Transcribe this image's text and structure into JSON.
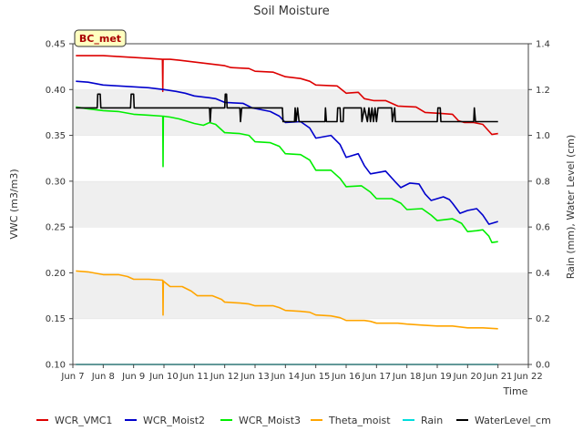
{
  "chart_data": {
    "type": "line",
    "title": "Soil Moisture",
    "badge": "BC_met",
    "xlabel": "Time",
    "ylabel_left": "VWC (m3/m3)",
    "ylabel_right": "Rain (mm), Water Level (cm)",
    "x_range": [
      7.0,
      22.0
    ],
    "ylim_left": [
      0.1,
      0.45
    ],
    "ylim_right": [
      0.0,
      1.4
    ],
    "x_ticks": [
      {
        "x": 7,
        "label": "Jun 7"
      },
      {
        "x": 8,
        "label": "Jun 8"
      },
      {
        "x": 9,
        "label": "Jun 9"
      },
      {
        "x": 10,
        "label": "Jun 10"
      },
      {
        "x": 11,
        "label": "Jun 11"
      },
      {
        "x": 12,
        "label": "Jun 12"
      },
      {
        "x": 13,
        "label": "Jun 13"
      },
      {
        "x": 14,
        "label": "Jun 14"
      },
      {
        "x": 15,
        "label": "Jun 15"
      },
      {
        "x": 16,
        "label": "Jun 16"
      },
      {
        "x": 17,
        "label": "Jun 17"
      },
      {
        "x": 18,
        "label": "Jun 18"
      },
      {
        "x": 19,
        "label": "Jun 19"
      },
      {
        "x": 20,
        "label": "Jun 20"
      },
      {
        "x": 21,
        "label": "Jun 21"
      },
      {
        "x": 22,
        "label": "Jun 22"
      }
    ],
    "y_ticks_left": [
      "0.10",
      "0.15",
      "0.20",
      "0.25",
      "0.30",
      "0.35",
      "0.40",
      "0.45"
    ],
    "y_ticks_right": [
      "0.0",
      "0.2",
      "0.4",
      "0.6",
      "0.8",
      "1.0",
      "1.2",
      "1.4"
    ],
    "grid": "horizontal bands",
    "legend_position": "bottom",
    "series": [
      {
        "name": "WCR_VMC1",
        "color": "#dd0000",
        "axis": "left",
        "points": [
          [
            7.1,
            0.437
          ],
          [
            8.0,
            0.437
          ],
          [
            8.5,
            0.436
          ],
          [
            9.0,
            0.435
          ],
          [
            9.5,
            0.434
          ],
          [
            9.95,
            0.433
          ],
          [
            9.96,
            0.398
          ],
          [
            9.97,
            0.433
          ],
          [
            10.2,
            0.433
          ],
          [
            10.5,
            0.432
          ],
          [
            11.0,
            0.43
          ],
          [
            11.5,
            0.428
          ],
          [
            12.0,
            0.426
          ],
          [
            12.2,
            0.424
          ],
          [
            12.8,
            0.423
          ],
          [
            13.0,
            0.42
          ],
          [
            13.6,
            0.419
          ],
          [
            14.0,
            0.414
          ],
          [
            14.5,
            0.412
          ],
          [
            14.8,
            0.409
          ],
          [
            15.0,
            0.405
          ],
          [
            15.7,
            0.404
          ],
          [
            16.0,
            0.396
          ],
          [
            16.4,
            0.397
          ],
          [
            16.6,
            0.39
          ],
          [
            16.9,
            0.388
          ],
          [
            17.3,
            0.388
          ],
          [
            17.7,
            0.382
          ],
          [
            18.3,
            0.381
          ],
          [
            18.6,
            0.375
          ],
          [
            19.1,
            0.374
          ],
          [
            19.5,
            0.373
          ],
          [
            19.7,
            0.366
          ],
          [
            19.9,
            0.364
          ],
          [
            20.2,
            0.364
          ],
          [
            20.5,
            0.362
          ],
          [
            20.8,
            0.351
          ],
          [
            21.0,
            0.352
          ]
        ]
      },
      {
        "name": "WCR_Moist2",
        "color": "#0000cc",
        "axis": "left",
        "points": [
          [
            7.1,
            0.409
          ],
          [
            7.5,
            0.408
          ],
          [
            8.0,
            0.405
          ],
          [
            8.5,
            0.404
          ],
          [
            9.0,
            0.403
          ],
          [
            9.5,
            0.402
          ],
          [
            10.0,
            0.4
          ],
          [
            10.4,
            0.398
          ],
          [
            10.7,
            0.396
          ],
          [
            11.0,
            0.393
          ],
          [
            11.5,
            0.391
          ],
          [
            11.7,
            0.39
          ],
          [
            12.0,
            0.386
          ],
          [
            12.6,
            0.385
          ],
          [
            12.9,
            0.38
          ],
          [
            13.2,
            0.378
          ],
          [
            13.5,
            0.376
          ],
          [
            13.8,
            0.371
          ],
          [
            14.0,
            0.364
          ],
          [
            14.5,
            0.365
          ],
          [
            14.8,
            0.358
          ],
          [
            15.0,
            0.347
          ],
          [
            15.5,
            0.35
          ],
          [
            15.8,
            0.34
          ],
          [
            16.0,
            0.326
          ],
          [
            16.4,
            0.33
          ],
          [
            16.6,
            0.317
          ],
          [
            16.8,
            0.308
          ],
          [
            17.3,
            0.311
          ],
          [
            17.6,
            0.3
          ],
          [
            17.8,
            0.293
          ],
          [
            18.1,
            0.298
          ],
          [
            18.4,
            0.297
          ],
          [
            18.6,
            0.286
          ],
          [
            18.8,
            0.279
          ],
          [
            19.2,
            0.283
          ],
          [
            19.4,
            0.28
          ],
          [
            19.5,
            0.276
          ],
          [
            19.75,
            0.265
          ],
          [
            20.0,
            0.268
          ],
          [
            20.3,
            0.27
          ],
          [
            20.5,
            0.263
          ],
          [
            20.7,
            0.253
          ],
          [
            20.9,
            0.255
          ],
          [
            21.0,
            0.256
          ]
        ]
      },
      {
        "name": "WCR_Moist3",
        "color": "#00ee00",
        "axis": "left",
        "points": [
          [
            7.1,
            0.381
          ],
          [
            7.5,
            0.379
          ],
          [
            8.0,
            0.377
          ],
          [
            8.5,
            0.376
          ],
          [
            9.0,
            0.373
          ],
          [
            9.5,
            0.372
          ],
          [
            9.96,
            0.371
          ],
          [
            9.97,
            0.316
          ],
          [
            9.98,
            0.371
          ],
          [
            10.2,
            0.37
          ],
          [
            10.5,
            0.368
          ],
          [
            11.0,
            0.363
          ],
          [
            11.3,
            0.361
          ],
          [
            11.5,
            0.364
          ],
          [
            11.7,
            0.362
          ],
          [
            12.0,
            0.353
          ],
          [
            12.5,
            0.352
          ],
          [
            12.8,
            0.35
          ],
          [
            13.0,
            0.343
          ],
          [
            13.5,
            0.342
          ],
          [
            13.8,
            0.338
          ],
          [
            14.0,
            0.33
          ],
          [
            14.5,
            0.329
          ],
          [
            14.8,
            0.323
          ],
          [
            15.0,
            0.312
          ],
          [
            15.5,
            0.312
          ],
          [
            15.8,
            0.303
          ],
          [
            16.0,
            0.294
          ],
          [
            16.5,
            0.295
          ],
          [
            16.8,
            0.288
          ],
          [
            17.0,
            0.281
          ],
          [
            17.5,
            0.281
          ],
          [
            17.8,
            0.276
          ],
          [
            18.0,
            0.269
          ],
          [
            18.5,
            0.27
          ],
          [
            18.8,
            0.263
          ],
          [
            19.0,
            0.257
          ],
          [
            19.5,
            0.259
          ],
          [
            19.8,
            0.254
          ],
          [
            20.0,
            0.245
          ],
          [
            20.3,
            0.246
          ],
          [
            20.5,
            0.247
          ],
          [
            20.7,
            0.24
          ],
          [
            20.8,
            0.233
          ],
          [
            21.0,
            0.234
          ]
        ]
      },
      {
        "name": "Theta_moist",
        "color": "#ffa500",
        "axis": "left",
        "points": [
          [
            7.1,
            0.202
          ],
          [
            7.5,
            0.201
          ],
          [
            8.0,
            0.198
          ],
          [
            8.5,
            0.198
          ],
          [
            8.8,
            0.196
          ],
          [
            9.0,
            0.193
          ],
          [
            9.5,
            0.193
          ],
          [
            9.96,
            0.192
          ],
          [
            9.97,
            0.154
          ],
          [
            9.98,
            0.191
          ],
          [
            10.2,
            0.185
          ],
          [
            10.6,
            0.185
          ],
          [
            10.9,
            0.18
          ],
          [
            11.1,
            0.175
          ],
          [
            11.6,
            0.175
          ],
          [
            11.9,
            0.171
          ],
          [
            12.0,
            0.168
          ],
          [
            12.5,
            0.167
          ],
          [
            12.8,
            0.166
          ],
          [
            13.0,
            0.164
          ],
          [
            13.6,
            0.164
          ],
          [
            13.8,
            0.162
          ],
          [
            14.0,
            0.159
          ],
          [
            14.5,
            0.158
          ],
          [
            14.8,
            0.157
          ],
          [
            15.0,
            0.154
          ],
          [
            15.5,
            0.153
          ],
          [
            15.8,
            0.151
          ],
          [
            16.0,
            0.148
          ],
          [
            16.6,
            0.148
          ],
          [
            16.8,
            0.147
          ],
          [
            17.0,
            0.145
          ],
          [
            17.7,
            0.145
          ],
          [
            18.0,
            0.144
          ],
          [
            18.5,
            0.143
          ],
          [
            19.0,
            0.142
          ],
          [
            19.5,
            0.142
          ],
          [
            20.0,
            0.14
          ],
          [
            20.5,
            0.14
          ],
          [
            21.0,
            0.139
          ]
        ]
      },
      {
        "name": "Rain",
        "color": "#00dddd",
        "axis": "right",
        "points": [
          [
            7.1,
            0.0
          ],
          [
            21.0,
            0.0
          ]
        ]
      },
      {
        "name": "WaterLevel_cm",
        "color": "#000000",
        "axis": "right",
        "points": [
          [
            7.1,
            1.12
          ],
          [
            7.8,
            1.12
          ],
          [
            7.82,
            1.18
          ],
          [
            7.9,
            1.18
          ],
          [
            7.92,
            1.12
          ],
          [
            8.9,
            1.12
          ],
          [
            8.92,
            1.18
          ],
          [
            9.0,
            1.18
          ],
          [
            9.02,
            1.12
          ],
          [
            11.5,
            1.12
          ],
          [
            11.52,
            1.06
          ],
          [
            11.55,
            1.12
          ],
          [
            12.0,
            1.12
          ],
          [
            12.02,
            1.18
          ],
          [
            12.06,
            1.18
          ],
          [
            12.08,
            1.12
          ],
          [
            12.5,
            1.12
          ],
          [
            12.52,
            1.06
          ],
          [
            12.56,
            1.12
          ],
          [
            13.9,
            1.12
          ],
          [
            13.92,
            1.06
          ],
          [
            14.0,
            1.06
          ],
          [
            14.3,
            1.06
          ],
          [
            14.32,
            1.12
          ],
          [
            14.35,
            1.06
          ],
          [
            14.4,
            1.12
          ],
          [
            14.45,
            1.06
          ],
          [
            14.5,
            1.06
          ],
          [
            15.3,
            1.06
          ],
          [
            15.32,
            1.12
          ],
          [
            15.35,
            1.06
          ],
          [
            15.7,
            1.06
          ],
          [
            15.72,
            1.12
          ],
          [
            15.8,
            1.12
          ],
          [
            15.82,
            1.06
          ],
          [
            15.9,
            1.06
          ],
          [
            15.92,
            1.12
          ],
          [
            16.5,
            1.12
          ],
          [
            16.52,
            1.06
          ],
          [
            16.6,
            1.12
          ],
          [
            16.7,
            1.06
          ],
          [
            16.75,
            1.12
          ],
          [
            16.8,
            1.06
          ],
          [
            16.85,
            1.12
          ],
          [
            16.9,
            1.06
          ],
          [
            16.95,
            1.12
          ],
          [
            17.0,
            1.06
          ],
          [
            17.05,
            1.12
          ],
          [
            17.5,
            1.12
          ],
          [
            17.52,
            1.06
          ],
          [
            17.6,
            1.12
          ],
          [
            17.62,
            1.06
          ],
          [
            19.0,
            1.06
          ],
          [
            19.02,
            1.12
          ],
          [
            19.1,
            1.12
          ],
          [
            19.12,
            1.06
          ],
          [
            20.2,
            1.06
          ],
          [
            20.22,
            1.12
          ],
          [
            20.26,
            1.06
          ],
          [
            21.0,
            1.06
          ]
        ]
      }
    ]
  }
}
